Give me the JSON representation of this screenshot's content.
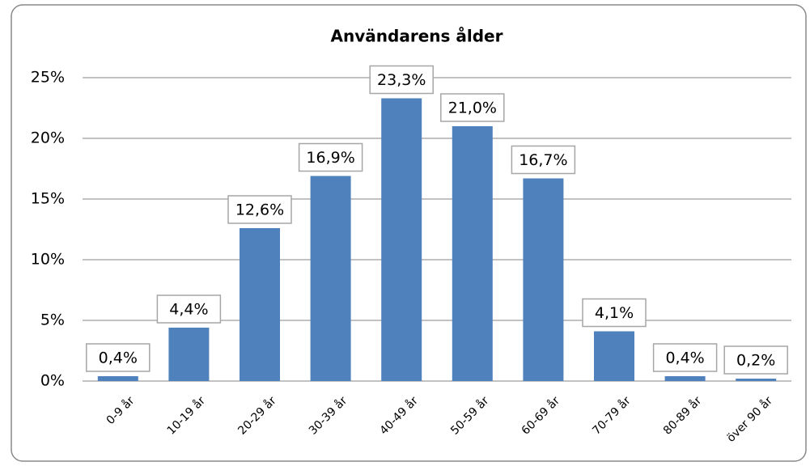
{
  "chart_data": {
    "type": "bar",
    "title": "Användarens ålder",
    "categories": [
      "0-9 år",
      "10-19 år",
      "20-29 år",
      "30-39 år",
      "40-49 år",
      "50-59 år",
      "60-69 år",
      "70-79 år",
      "80-89 år",
      "över 90 år"
    ],
    "values": [
      0.4,
      4.4,
      12.6,
      16.9,
      23.3,
      21.0,
      16.7,
      4.1,
      0.4,
      0.2
    ],
    "value_labels": [
      "0,4%",
      "4,4%",
      "12,6%",
      "16,9%",
      "23,3%",
      "21,0%",
      "16,7%",
      "4,1%",
      "0,4%",
      "0,2%"
    ],
    "color": "#4f81bd",
    "ylim": [
      0,
      25
    ],
    "yticks": [
      {
        "value": 0,
        "label": "0%"
      },
      {
        "value": 5,
        "label": "5%"
      },
      {
        "value": 10,
        "label": "10%"
      },
      {
        "value": 15,
        "label": "15%"
      },
      {
        "value": 20,
        "label": "20%"
      },
      {
        "value": 25,
        "label": "25%"
      }
    ],
    "grid": true
  }
}
